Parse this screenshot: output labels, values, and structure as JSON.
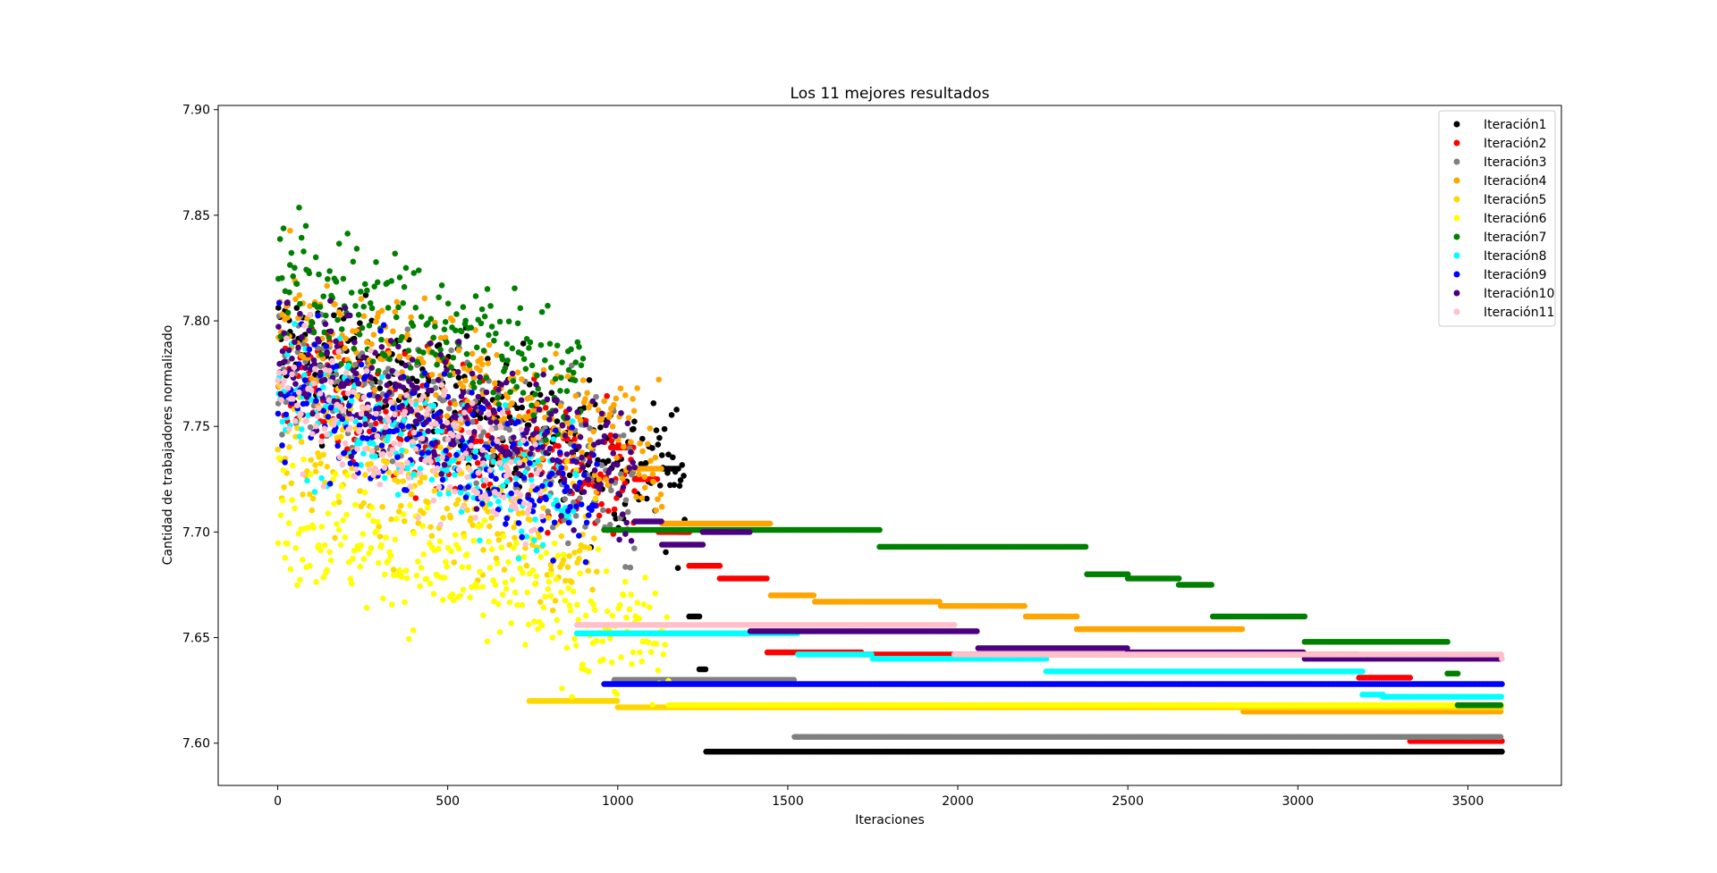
{
  "chart_data": {
    "type": "scatter",
    "title": "Los 11 mejores resultados",
    "xlabel": "Iteraciones",
    "ylabel": "Cantidad de trabajadores normalizado",
    "xlim": [
      -175,
      3775
    ],
    "ylim": [
      7.58,
      7.902
    ],
    "xticks": [
      0,
      500,
      1000,
      1500,
      2000,
      2500,
      3000,
      3500
    ],
    "yticks": [
      7.6,
      7.65,
      7.7,
      7.75,
      7.8,
      7.85,
      7.9
    ],
    "ytick_labels": [
      "7.60",
      "7.65",
      "7.70",
      "7.75",
      "7.80",
      "7.85",
      "7.90"
    ],
    "grid": false,
    "legend_position": "top-right",
    "series": [
      {
        "name": "Iteración1",
        "color": "#000000",
        "final_value": 7.596,
        "settle_x": 1260,
        "noisy_end_x": 1200,
        "noise_mean": 7.76,
        "steps": [
          [
            1130,
            7.73
          ],
          [
            1180,
            7.7
          ],
          [
            1210,
            7.66
          ],
          [
            1240,
            7.635
          ],
          [
            1260,
            7.596
          ]
        ]
      },
      {
        "name": "Iteración2",
        "color": "#ff0000",
        "final_value": 7.601,
        "settle_x": 3330,
        "noisy_end_x": 1050,
        "noise_mean": 7.745,
        "steps": [
          [
            980,
            7.74
          ],
          [
            1050,
            7.725
          ],
          [
            1120,
            7.7
          ],
          [
            1210,
            7.684
          ],
          [
            1300,
            7.678
          ],
          [
            1440,
            7.643
          ],
          [
            1720,
            7.642
          ],
          [
            3180,
            7.631
          ],
          [
            3330,
            7.601
          ]
        ]
      },
      {
        "name": "Iteración3",
        "color": "#808080",
        "final_value": 7.603,
        "settle_x": 1520,
        "noisy_end_x": 1050,
        "noise_mean": 7.75,
        "steps": [
          [
            990,
            7.63
          ],
          [
            1520,
            7.603
          ]
        ]
      },
      {
        "name": "Iteración4",
        "color": "#ffa500",
        "final_value": 7.615,
        "settle_x": 2840,
        "noisy_end_x": 1130,
        "noise_mean": 7.77,
        "steps": [
          [
            1050,
            7.73
          ],
          [
            1130,
            7.704
          ],
          [
            1450,
            7.67
          ],
          [
            1580,
            7.667
          ],
          [
            1950,
            7.665
          ],
          [
            2200,
            7.66
          ],
          [
            2350,
            7.654
          ],
          [
            2840,
            7.615
          ]
        ]
      },
      {
        "name": "Iteración5",
        "color": "#ffd700",
        "final_value": 7.617,
        "settle_x": 1000,
        "noisy_end_x": 940,
        "noise_mean": 7.715,
        "steps": [
          [
            740,
            7.62
          ],
          [
            1000,
            7.617
          ]
        ]
      },
      {
        "name": "Iteración6",
        "color": "#ffff00",
        "final_value": 7.618,
        "settle_x": 1150,
        "noisy_end_x": 1150,
        "noise_mean": 7.68,
        "steps": [
          [
            1150,
            7.618
          ]
        ]
      },
      {
        "name": "Iteración7",
        "color": "#008000",
        "final_value": 7.618,
        "settle_x": 3470,
        "noisy_end_x": 900,
        "noise_mean": 7.79,
        "steps": [
          [
            960,
            7.701
          ],
          [
            1770,
            7.693
          ],
          [
            2380,
            7.68
          ],
          [
            2500,
            7.678
          ],
          [
            2650,
            7.675
          ],
          [
            2750,
            7.66
          ],
          [
            3020,
            7.648
          ],
          [
            3440,
            7.633
          ],
          [
            3470,
            7.618
          ]
        ]
      },
      {
        "name": "Iteración8",
        "color": "#00ffff",
        "final_value": 7.622,
        "settle_x": 3250,
        "noisy_end_x": 880,
        "noise_mean": 7.735,
        "steps": [
          [
            880,
            7.652
          ],
          [
            1530,
            7.642
          ],
          [
            1750,
            7.64
          ],
          [
            2260,
            7.634
          ],
          [
            3190,
            7.623
          ],
          [
            3250,
            7.622
          ]
        ]
      },
      {
        "name": "Iteración9",
        "color": "#0000ff",
        "final_value": 7.628,
        "settle_x": 960,
        "noisy_end_x": 940,
        "noise_mean": 7.74,
        "steps": [
          [
            960,
            7.628
          ]
        ]
      },
      {
        "name": "Iteración10",
        "color": "#4b0082",
        "final_value": 7.64,
        "settle_x": 3020,
        "noisy_end_x": 1050,
        "noise_mean": 7.755,
        "steps": [
          [
            1050,
            7.705
          ],
          [
            1130,
            7.694
          ],
          [
            1250,
            7.7
          ],
          [
            1390,
            7.653
          ],
          [
            2060,
            7.645
          ],
          [
            2500,
            7.643
          ],
          [
            3020,
            7.64
          ]
        ]
      },
      {
        "name": "Iteración11",
        "color": "#ffc0cb",
        "final_value": 7.64,
        "settle_x": 3600,
        "noisy_end_x": 780,
        "noise_mean": 7.735,
        "steps": [
          [
            880,
            7.656
          ],
          [
            1990,
            7.642
          ],
          [
            3600,
            7.64
          ]
        ]
      }
    ],
    "x_end": 3600
  }
}
